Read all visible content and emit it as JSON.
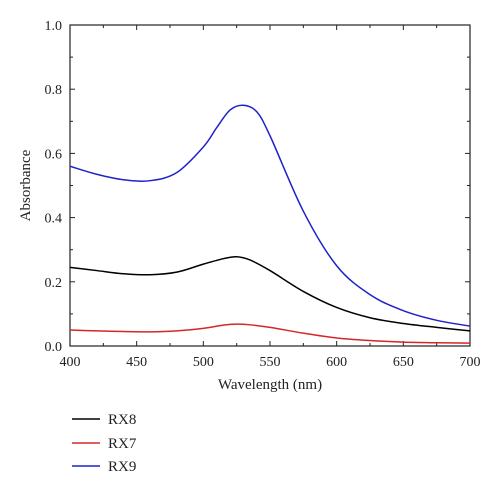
{
  "chart_data": {
    "type": "line",
    "title": "",
    "xlabel": "Wavelength (nm)",
    "ylabel": "Absorbance",
    "xlim": [
      400,
      700
    ],
    "ylim": [
      0.0,
      1.0
    ],
    "x_ticks": [
      "400",
      "450",
      "500",
      "550",
      "600",
      "650",
      "700"
    ],
    "y_ticks": [
      "0.0",
      "0.2",
      "0.4",
      "0.6",
      "0.8",
      "1.0"
    ],
    "grid": false,
    "legend_position": "bottom-left",
    "legend": [
      "RX8",
      "RX7",
      "RX9"
    ],
    "series": [
      {
        "name": "RX8",
        "color": "#000000",
        "x": [
          400,
          420,
          440,
          460,
          480,
          500,
          515,
          525,
          535,
          550,
          575,
          600,
          625,
          650,
          675,
          700
        ],
        "y": [
          0.245,
          0.235,
          0.225,
          0.222,
          0.23,
          0.255,
          0.272,
          0.278,
          0.268,
          0.235,
          0.17,
          0.12,
          0.088,
          0.07,
          0.058,
          0.047
        ]
      },
      {
        "name": "RX7",
        "color": "#d62728",
        "x": [
          400,
          420,
          440,
          460,
          480,
          500,
          515,
          525,
          535,
          550,
          575,
          600,
          625,
          650,
          675,
          700
        ],
        "y": [
          0.05,
          0.047,
          0.045,
          0.044,
          0.047,
          0.055,
          0.065,
          0.068,
          0.066,
          0.058,
          0.04,
          0.025,
          0.017,
          0.012,
          0.01,
          0.009
        ]
      },
      {
        "name": "RX9",
        "color": "#1f22c8",
        "x": [
          400,
          420,
          440,
          460,
          480,
          500,
          510,
          520,
          530,
          540,
          550,
          575,
          600,
          625,
          650,
          675,
          700
        ],
        "y": [
          0.56,
          0.535,
          0.518,
          0.515,
          0.54,
          0.62,
          0.68,
          0.735,
          0.75,
          0.73,
          0.655,
          0.42,
          0.25,
          0.16,
          0.11,
          0.08,
          0.062
        ]
      }
    ]
  }
}
